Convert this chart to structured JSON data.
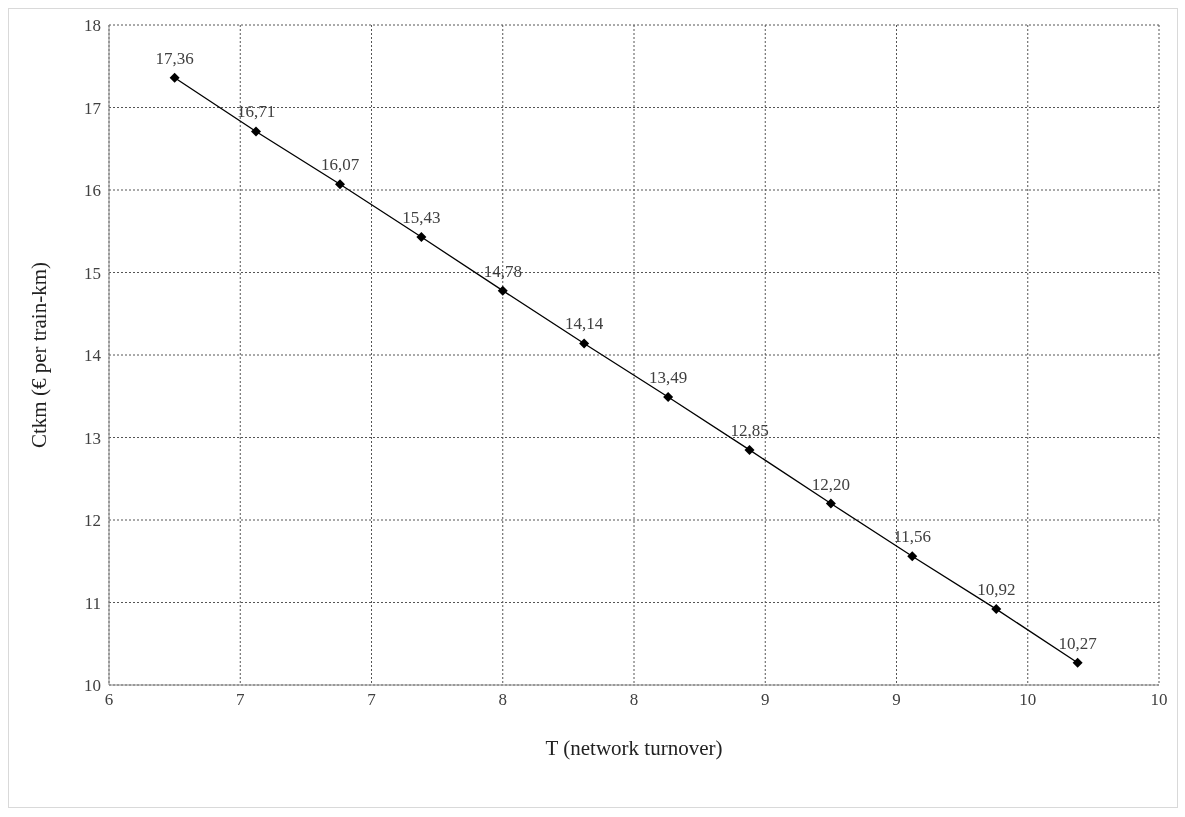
{
  "chart_data": {
    "type": "line",
    "xlabel": "T (network turnover)",
    "ylabel": "Ctkm (€ per train-km)",
    "x": [
      6.25,
      6.56,
      6.88,
      7.19,
      7.5,
      7.81,
      8.13,
      8.44,
      8.75,
      9.06,
      9.38,
      9.69
    ],
    "series": [
      {
        "color": "#000000",
        "values": [
          17.36,
          16.71,
          16.07,
          15.43,
          14.78,
          14.14,
          13.49,
          12.85,
          12.2,
          11.56,
          10.92,
          10.27
        ],
        "value_labels": [
          "17,36",
          "16,71",
          "16,07",
          "15,43",
          "14,78",
          "14,14",
          "13,49",
          "12,85",
          "12,20",
          "11,56",
          "10,92",
          "10,27"
        ]
      }
    ],
    "xlim": [
      6,
      10
    ],
    "xticks": [
      {
        "value": 6,
        "label": "6"
      },
      {
        "value": 6.5,
        "label": "7"
      },
      {
        "value": 7,
        "label": "7"
      },
      {
        "value": 7.5,
        "label": "8"
      },
      {
        "value": 8,
        "label": "8"
      },
      {
        "value": 8.5,
        "label": "9"
      },
      {
        "value": 9,
        "label": "9"
      },
      {
        "value": 9.5,
        "label": "10"
      },
      {
        "value": 10,
        "label": "10"
      }
    ],
    "ylim": [
      10,
      18
    ],
    "yticks": [
      10,
      11,
      12,
      13,
      14,
      15,
      16,
      17,
      18
    ],
    "grid": true,
    "marker": "diamond",
    "line_style": "solid"
  }
}
